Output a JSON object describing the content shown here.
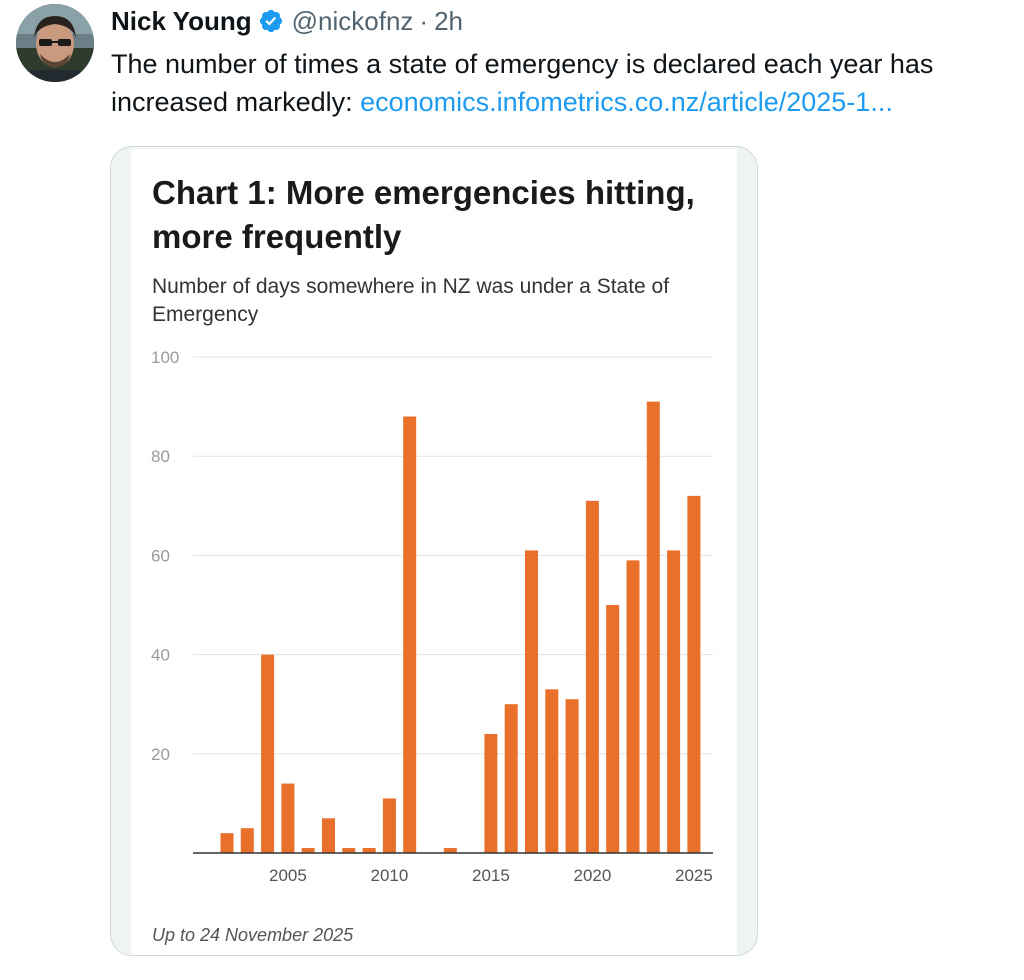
{
  "tweet": {
    "author_name": "Nick Young",
    "handle": "@nickofnz",
    "separator": "·",
    "time": "2h",
    "text": "The number of times a state of emergency is declared each year has increased markedly: ",
    "link_text": "economics.infometrics.co.nz/article/2025-1..."
  },
  "colors": {
    "bar": "#e8702a",
    "verified": "#1d9bf0",
    "link": "#1d9bf0"
  },
  "chart_data": {
    "type": "bar",
    "title": "Chart 1: More emergencies hitting, more frequently",
    "subtitle": "Number of days somewhere in NZ was under a State of Emergency",
    "note": "Up to 24 November 2025",
    "xlabel": "",
    "ylabel": "",
    "ylim": [
      0,
      100
    ],
    "yticks": [
      20,
      40,
      60,
      80,
      100
    ],
    "xticks": [
      2005,
      2010,
      2015,
      2020,
      2025
    ],
    "grid": true,
    "categories": [
      2002,
      2003,
      2004,
      2005,
      2006,
      2007,
      2008,
      2009,
      2010,
      2011,
      2012,
      2013,
      2014,
      2015,
      2016,
      2017,
      2018,
      2019,
      2020,
      2021,
      2022,
      2023,
      2024,
      2025
    ],
    "values": [
      4,
      5,
      40,
      14,
      1,
      7,
      1,
      1,
      11,
      88,
      0,
      1,
      0,
      24,
      30,
      61,
      33,
      31,
      71,
      50,
      59,
      91,
      61,
      72
    ]
  }
}
